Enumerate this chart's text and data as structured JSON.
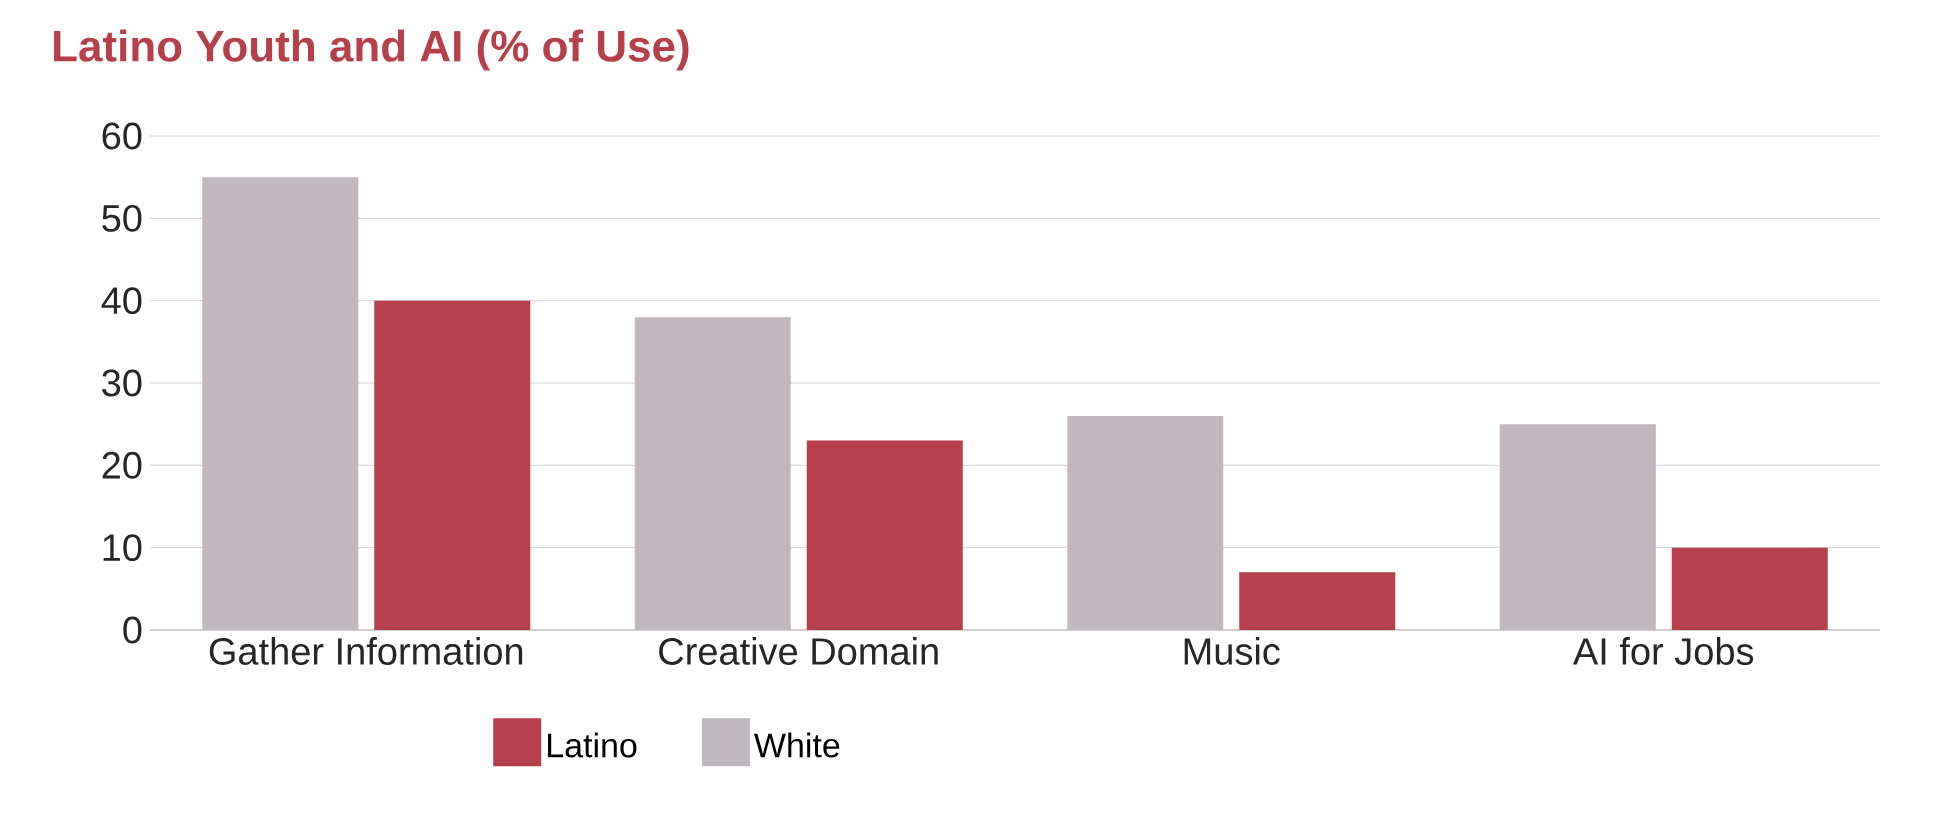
{
  "chart_data": {
    "type": "bar",
    "title": "Latino Youth and AI (% of Use)",
    "categories": [
      "Gather Information",
      "Creative Domain",
      "Music",
      "AI for Jobs"
    ],
    "series": [
      {
        "name": "White",
        "color": "#c0b8bf",
        "values": [
          55,
          38,
          26,
          25
        ]
      },
      {
        "name": "Latino",
        "color": "#b5404b",
        "values": [
          40,
          23,
          7,
          10
        ]
      }
    ],
    "ylim": [
      0,
      60
    ],
    "yticks": [
      0,
      10,
      20,
      30,
      40,
      50,
      60
    ],
    "grid": "y",
    "legend": "bottom"
  }
}
